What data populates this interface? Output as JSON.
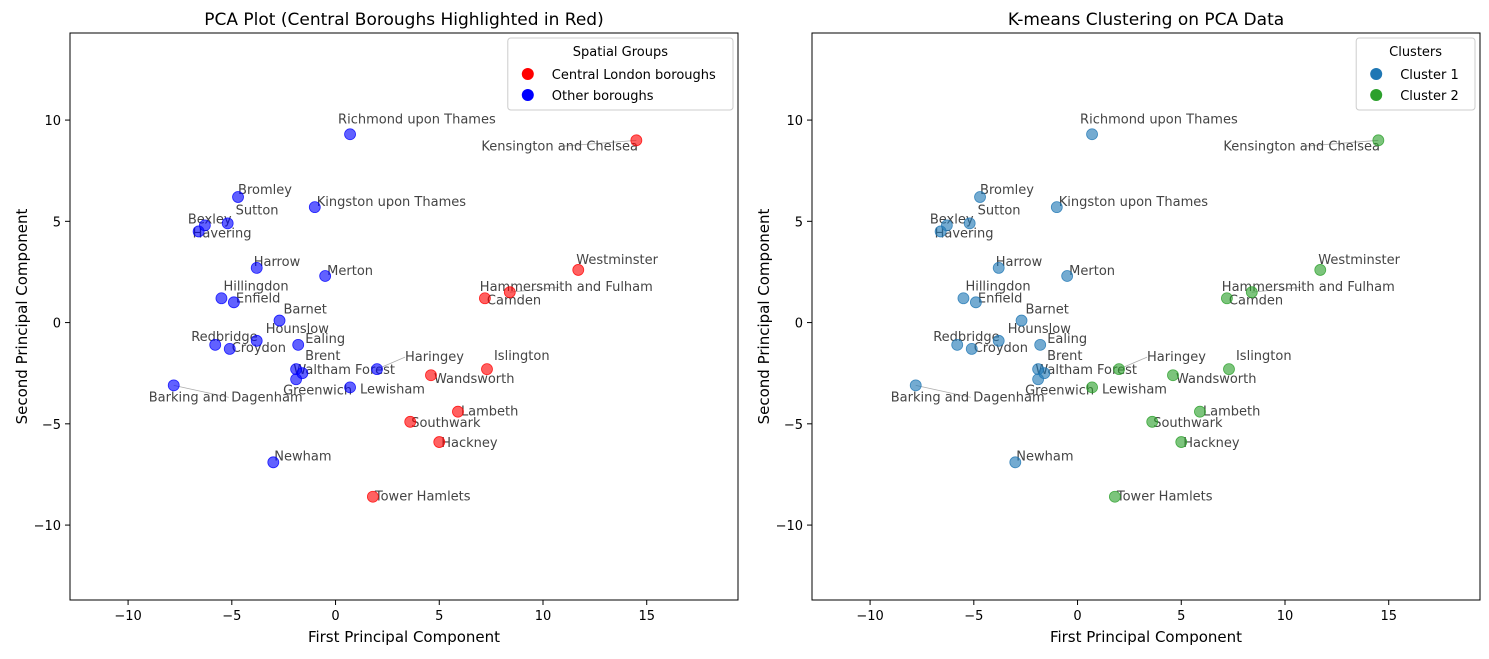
{
  "chart_data": [
    {
      "type": "scatter",
      "title": "PCA Plot (Central Boroughs Highlighted in Red)",
      "xlabel": "First Principal Component",
      "ylabel": "Second Principal Component",
      "xlim": [
        -12.8,
        19.4
      ],
      "ylim": [
        -13.7,
        14.3
      ],
      "xticks": [
        -10,
        -5,
        0,
        5,
        10,
        15
      ],
      "yticks": [
        -10,
        -5,
        0,
        5,
        10
      ],
      "grid": false,
      "legend": {
        "title": "Spatial Groups",
        "position": "top-right",
        "entries": [
          {
            "label": "Central London boroughs",
            "color": "#ff0000"
          },
          {
            "label": "Other boroughs",
            "color": "#0000ff"
          }
        ]
      },
      "colors": {
        "central": "#ff0000",
        "other": "#0000ff"
      },
      "color_key": "group",
      "points": [
        {
          "label": "Richmond upon Thames",
          "x": 0.7,
          "y": 9.3,
          "group": "other",
          "cluster": 1
        },
        {
          "label": "Kensington and Chelsea",
          "x": 14.5,
          "y": 9.0,
          "group": "central",
          "cluster": 2
        },
        {
          "label": "Bromley",
          "x": -4.7,
          "y": 6.2,
          "group": "other",
          "cluster": 1
        },
        {
          "label": "Kingston upon Thames",
          "x": -1.0,
          "y": 5.7,
          "group": "other",
          "cluster": 1
        },
        {
          "label": "Sutton",
          "x": -5.2,
          "y": 4.9,
          "group": "other",
          "cluster": 1
        },
        {
          "label": "Bexley",
          "x": -6.3,
          "y": 4.8,
          "group": "other",
          "cluster": 1
        },
        {
          "label": "Havering",
          "x": -6.6,
          "y": 4.5,
          "group": "other",
          "cluster": 1
        },
        {
          "label": "Harrow",
          "x": -3.8,
          "y": 2.7,
          "group": "other",
          "cluster": 1
        },
        {
          "label": "Merton",
          "x": -0.5,
          "y": 2.3,
          "group": "other",
          "cluster": 1
        },
        {
          "label": "Westminster",
          "x": 11.7,
          "y": 2.6,
          "group": "central",
          "cluster": 2
        },
        {
          "label": "Hammersmith and Fulham",
          "x": 8.4,
          "y": 1.5,
          "group": "central",
          "cluster": 2
        },
        {
          "label": "Camden",
          "x": 7.2,
          "y": 1.2,
          "group": "central",
          "cluster": 2
        },
        {
          "label": "Hillingdon",
          "x": -5.5,
          "y": 1.2,
          "group": "other",
          "cluster": 1
        },
        {
          "label": "Enfield",
          "x": -4.9,
          "y": 1.0,
          "group": "other",
          "cluster": 1
        },
        {
          "label": "Barnet",
          "x": -2.7,
          "y": 0.1,
          "group": "other",
          "cluster": 1
        },
        {
          "label": "Hounslow",
          "x": -3.8,
          "y": -0.9,
          "group": "other",
          "cluster": 1
        },
        {
          "label": "Redbridge",
          "x": -5.8,
          "y": -1.1,
          "group": "other",
          "cluster": 1
        },
        {
          "label": "Ealing",
          "x": -1.8,
          "y": -1.1,
          "group": "other",
          "cluster": 1
        },
        {
          "label": "Croydon",
          "x": -5.1,
          "y": -1.3,
          "group": "other",
          "cluster": 1
        },
        {
          "label": "Brent",
          "x": -1.9,
          "y": -2.3,
          "group": "other",
          "cluster": 1
        },
        {
          "label": "Waltham Forest",
          "x": -1.6,
          "y": -2.5,
          "group": "other",
          "cluster": 1
        },
        {
          "label": "Greenwich",
          "x": -1.9,
          "y": -2.8,
          "group": "other",
          "cluster": 1
        },
        {
          "label": "Haringey",
          "x": 2.0,
          "y": -2.3,
          "group": "other",
          "cluster": 2
        },
        {
          "label": "Lewisham",
          "x": 0.7,
          "y": -3.2,
          "group": "other",
          "cluster": 2
        },
        {
          "label": "Islington",
          "x": 7.3,
          "y": -2.3,
          "group": "central",
          "cluster": 2
        },
        {
          "label": "Wandsworth",
          "x": 4.6,
          "y": -2.6,
          "group": "central",
          "cluster": 2
        },
        {
          "label": "Barking and Dagenham",
          "x": -7.8,
          "y": -3.1,
          "group": "other",
          "cluster": 1
        },
        {
          "label": "Lambeth",
          "x": 5.9,
          "y": -4.4,
          "group": "central",
          "cluster": 2
        },
        {
          "label": "Southwark",
          "x": 3.6,
          "y": -4.9,
          "group": "central",
          "cluster": 2
        },
        {
          "label": "Hackney",
          "x": 5.0,
          "y": -5.9,
          "group": "central",
          "cluster": 2
        },
        {
          "label": "Newham",
          "x": -3.0,
          "y": -6.9,
          "group": "other",
          "cluster": 1
        },
        {
          "label": "Tower Hamlets",
          "x": 1.8,
          "y": -8.6,
          "group": "central",
          "cluster": 2
        }
      ]
    },
    {
      "type": "scatter",
      "title": "K-means Clustering on PCA Data",
      "xlabel": "First Principal Component",
      "ylabel": "Second Principal Component",
      "xlim": [
        -12.8,
        19.4
      ],
      "ylim": [
        -13.7,
        14.3
      ],
      "xticks": [
        -10,
        -5,
        0,
        5,
        10,
        15
      ],
      "yticks": [
        -10,
        -5,
        0,
        5,
        10
      ],
      "grid": false,
      "legend": {
        "title": "Clusters",
        "position": "top-right",
        "entries": [
          {
            "label": "Cluster 1",
            "color": "#1f77b4"
          },
          {
            "label": "Cluster 2",
            "color": "#2ca02c"
          }
        ]
      },
      "colors": {
        "1": "#1f77b4",
        "2": "#2ca02c"
      },
      "color_key": "cluster",
      "points_ref": 0
    }
  ]
}
